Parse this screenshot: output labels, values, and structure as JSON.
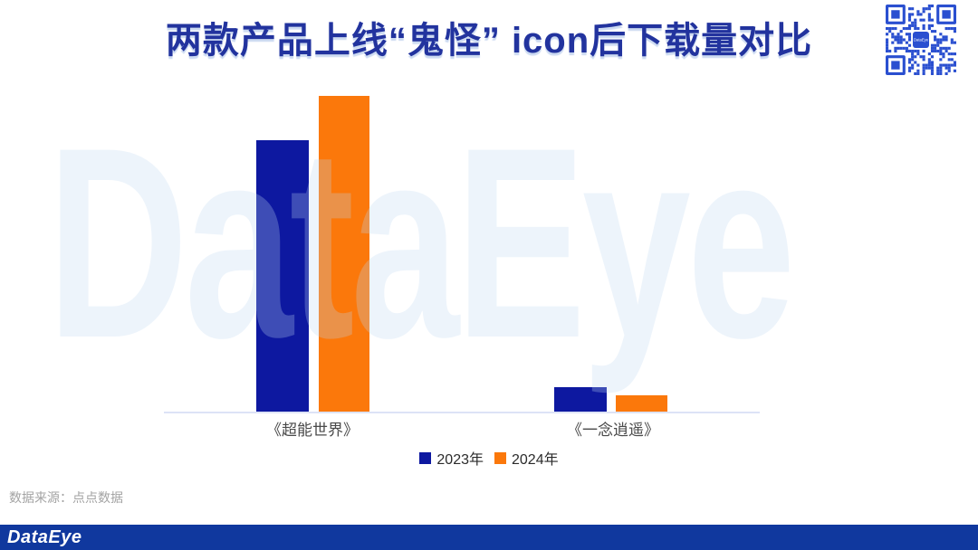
{
  "page": {
    "title": "两款产品上线“鬼怪” icon后下载量对比",
    "source_note": "数据来源：点点数据",
    "footer_logo": "DataEye",
    "watermark_text": "DataEye",
    "qr_center_label": "DataEye"
  },
  "colors": {
    "title": "#22339e",
    "bar_2023": "#0d18a0",
    "bar_2024": "#fb780b",
    "axis_line": "#dde3f6",
    "footer_bg": "#10389e",
    "qr_blue": "#2a4fd0",
    "watermark": "rgba(190,215,240,0.28)"
  },
  "chart_data": {
    "type": "bar",
    "title": "两款产品上线“鬼怪” icon后下载量对比",
    "categories": [
      "《超能世界》",
      "《一念逍遥》"
    ],
    "series": [
      {
        "name": "2023年",
        "color": "#0d18a0",
        "values": [
          86,
          8
        ]
      },
      {
        "name": "2024年",
        "color": "#fb780b",
        "values": [
          100,
          5.5
        ]
      }
    ],
    "xlabel": "",
    "ylabel": "",
    "ylim": [
      0,
      100
    ],
    "value_axis_labels_visible": false,
    "data_labels_visible": false,
    "grid": false,
    "legend_position": "bottom"
  }
}
